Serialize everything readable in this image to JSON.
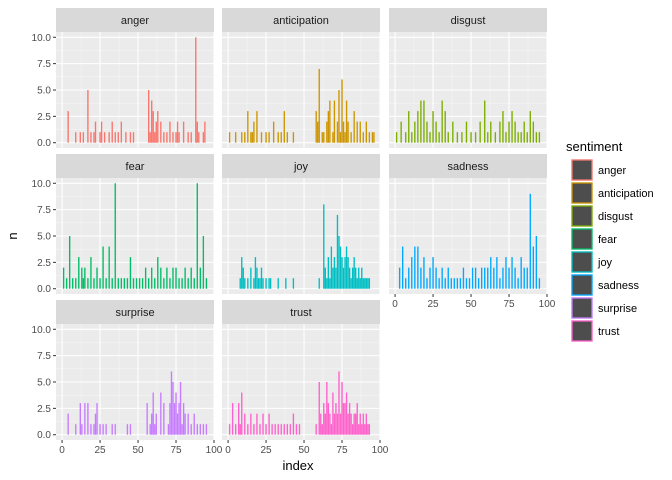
{
  "chart_data": {
    "type": "bar",
    "xlabel": "index",
    "ylabel": "n",
    "xlim": [
      -4,
      100
    ],
    "ylim": [
      -0.5,
      10.5
    ],
    "x_ticks": [
      0,
      25,
      50,
      75,
      100
    ],
    "y_ticks": [
      0.0,
      2.5,
      5.0,
      7.5,
      10.0
    ],
    "y_tick_labels": [
      "0.0",
      "2.5",
      "5.0",
      "7.5",
      "10.0"
    ],
    "x_tick_labels": [
      "0",
      "25",
      "50",
      "75",
      "100"
    ],
    "legend": {
      "title": "sentiment",
      "position": "right"
    },
    "series": [
      {
        "name": "anger",
        "color": "#F8766D",
        "x": [
          4,
          9,
          12,
          14,
          17,
          19,
          21,
          22,
          25,
          26,
          28,
          31,
          33,
          35,
          37,
          39,
          42,
          45,
          47,
          57,
          58,
          59,
          60,
          61,
          62,
          63,
          65,
          67,
          69,
          71,
          73,
          75,
          76,
          77,
          80,
          83,
          85,
          88,
          89,
          90,
          93,
          94
        ],
        "values": [
          3,
          1,
          1,
          1,
          5,
          1,
          1,
          2,
          1,
          2,
          1,
          1,
          2,
          1,
          1,
          2,
          1,
          1,
          1,
          5,
          1,
          4,
          3,
          1,
          2,
          3,
          2,
          1,
          1,
          2,
          1,
          1,
          2,
          1,
          2,
          1,
          1,
          10,
          2,
          1,
          1,
          2
        ]
      },
      {
        "name": "anticipation",
        "color": "#CD9600",
        "x": [
          1,
          5,
          9,
          11,
          13,
          15,
          16,
          17,
          19,
          22,
          25,
          27,
          30,
          33,
          35,
          37,
          39,
          43,
          58,
          59,
          60,
          62,
          63,
          65,
          66,
          67,
          69,
          70,
          72,
          73,
          74,
          75,
          76,
          77,
          78,
          79,
          81,
          83,
          85,
          87,
          89,
          91,
          93,
          95,
          96
        ],
        "values": [
          1,
          1,
          1,
          1,
          3,
          1,
          1,
          2,
          3,
          1,
          1,
          1,
          2,
          1,
          1,
          3,
          1,
          1,
          3,
          2,
          7,
          1,
          1,
          2,
          3,
          4,
          1,
          4,
          2,
          5,
          1,
          6,
          2,
          1,
          4,
          2,
          1,
          3,
          2,
          2,
          1,
          2,
          1,
          1,
          1
        ],
        "_unused": null
      },
      {
        "name": "disgust",
        "color": "#7CAE00",
        "x": [
          1,
          4,
          7,
          9,
          11,
          13,
          15,
          17,
          19,
          21,
          23,
          25,
          27,
          29,
          31,
          33,
          35,
          38,
          41,
          44,
          47,
          50,
          53,
          56,
          59,
          61,
          63,
          66,
          69,
          71,
          73,
          75,
          77,
          79,
          81,
          83,
          85,
          87,
          89,
          91,
          93,
          95
        ],
        "values": [
          1,
          2,
          1,
          3,
          1,
          2,
          3,
          4,
          4,
          2,
          1,
          3,
          2,
          1,
          4,
          3,
          1,
          2,
          1,
          1,
          2,
          1,
          1,
          2,
          4,
          1,
          2,
          1,
          2,
          3,
          1,
          2,
          3,
          2,
          1,
          1,
          2,
          1,
          3,
          2,
          1,
          1
        ]
      },
      {
        "name": "fear",
        "color": "#00BE67",
        "x": [
          1,
          3,
          5,
          7,
          9,
          11,
          13,
          14,
          15,
          17,
          19,
          21,
          23,
          25,
          27,
          29,
          31,
          33,
          35,
          37,
          39,
          41,
          43,
          45,
          47,
          49,
          51,
          53,
          55,
          57,
          59,
          61,
          63,
          65,
          67,
          69,
          71,
          73,
          75,
          77,
          79,
          81,
          83,
          85,
          87,
          89,
          91,
          93,
          95
        ],
        "values": [
          2,
          1,
          5,
          1,
          1,
          3,
          2,
          1,
          2,
          1,
          3,
          1,
          2,
          1,
          4,
          1,
          4,
          1,
          10,
          1,
          1,
          1,
          1,
          3,
          1,
          1,
          1,
          1,
          2,
          1,
          2,
          1,
          3,
          2,
          1,
          2,
          1,
          2,
          2,
          1,
          1,
          2,
          1,
          2,
          1,
          10,
          2,
          5,
          1
        ]
      },
      {
        "name": "joy",
        "color": "#00BFC4",
        "x": [
          8,
          9,
          10,
          11,
          13,
          15,
          17,
          18,
          19,
          20,
          21,
          22,
          23,
          25,
          27,
          28,
          33,
          38,
          43,
          60,
          63,
          64,
          65,
          66,
          67,
          68,
          69,
          70,
          71,
          72,
          73,
          74,
          75,
          76,
          77,
          78,
          79,
          80,
          81,
          82,
          83,
          84,
          85,
          86,
          87,
          88,
          89,
          90,
          91,
          92,
          93
        ],
        "values": [
          1,
          3,
          2,
          1,
          1,
          2,
          1,
          3,
          2,
          1,
          1,
          2,
          1,
          1,
          1,
          1,
          1,
          1,
          1,
          1,
          8,
          2,
          1,
          3,
          1,
          4,
          2,
          3,
          2,
          7,
          5,
          4,
          3,
          2,
          3,
          4,
          3,
          2,
          1,
          2,
          3,
          2,
          1,
          2,
          1,
          2,
          1,
          1,
          1,
          1,
          1
        ]
      },
      {
        "name": "sadness",
        "color": "#00A9FF",
        "x": [
          3,
          5,
          7,
          9,
          11,
          13,
          15,
          17,
          19,
          21,
          23,
          25,
          27,
          29,
          31,
          33,
          35,
          37,
          39,
          41,
          43,
          45,
          47,
          49,
          51,
          53,
          55,
          57,
          59,
          61,
          63,
          65,
          67,
          69,
          71,
          73,
          75,
          77,
          79,
          81,
          83,
          85,
          87,
          89,
          91,
          93,
          95
        ],
        "values": [
          2,
          4,
          1,
          2,
          3,
          4,
          4,
          2,
          3,
          1,
          2,
          3,
          2,
          1,
          2,
          1,
          2,
          1,
          1,
          1,
          1,
          2,
          1,
          1,
          2,
          2,
          1,
          2,
          2,
          2,
          3,
          2,
          3,
          1,
          2,
          3,
          2,
          3,
          2,
          1,
          3,
          2,
          2,
          9,
          4,
          5,
          1
        ]
      },
      {
        "name": "surprise",
        "color": "#C77CFF",
        "x": [
          4,
          9,
          12,
          13,
          15,
          17,
          19,
          21,
          22,
          23,
          25,
          27,
          29,
          33,
          35,
          43,
          45,
          56,
          58,
          59,
          60,
          61,
          62,
          65,
          67,
          70,
          71,
          72,
          73,
          74,
          75,
          76,
          77,
          78,
          79,
          80,
          81,
          83,
          85,
          87,
          89,
          91,
          93,
          95
        ],
        "values": [
          2,
          1,
          3,
          1,
          3,
          3,
          1,
          1,
          2,
          3,
          1,
          1,
          1,
          1,
          1,
          1,
          1,
          3,
          1,
          2,
          4,
          1,
          2,
          4,
          3,
          1,
          3,
          6,
          5,
          3,
          4,
          2,
          3,
          5,
          1,
          3,
          2,
          2,
          1,
          2,
          1,
          1,
          1,
          1
        ]
      },
      {
        "name": "trust",
        "color": "#FF61CC",
        "x": [
          1,
          3,
          5,
          7,
          8,
          9,
          11,
          13,
          15,
          17,
          19,
          21,
          23,
          25,
          27,
          29,
          31,
          33,
          35,
          37,
          39,
          41,
          43,
          45,
          47,
          58,
          60,
          61,
          62,
          63,
          64,
          65,
          66,
          67,
          68,
          69,
          70,
          71,
          72,
          73,
          74,
          75,
          76,
          77,
          78,
          79,
          80,
          81,
          82,
          83,
          84,
          85,
          86,
          87,
          88,
          89,
          90,
          91,
          92,
          93
        ],
        "values": [
          1,
          3,
          1,
          3,
          1,
          4,
          2,
          1,
          2,
          1,
          2,
          1,
          2,
          1,
          2,
          1,
          1,
          1,
          1,
          1,
          1,
          1,
          2,
          1,
          1,
          1,
          5,
          2,
          1,
          3,
          2,
          5,
          3,
          2,
          1,
          4,
          2,
          3,
          2,
          6,
          2,
          5,
          3,
          3,
          4,
          2,
          3,
          2,
          1,
          2,
          2,
          3,
          1,
          2,
          1,
          2,
          1,
          2,
          1,
          1
        ]
      }
    ]
  }
}
